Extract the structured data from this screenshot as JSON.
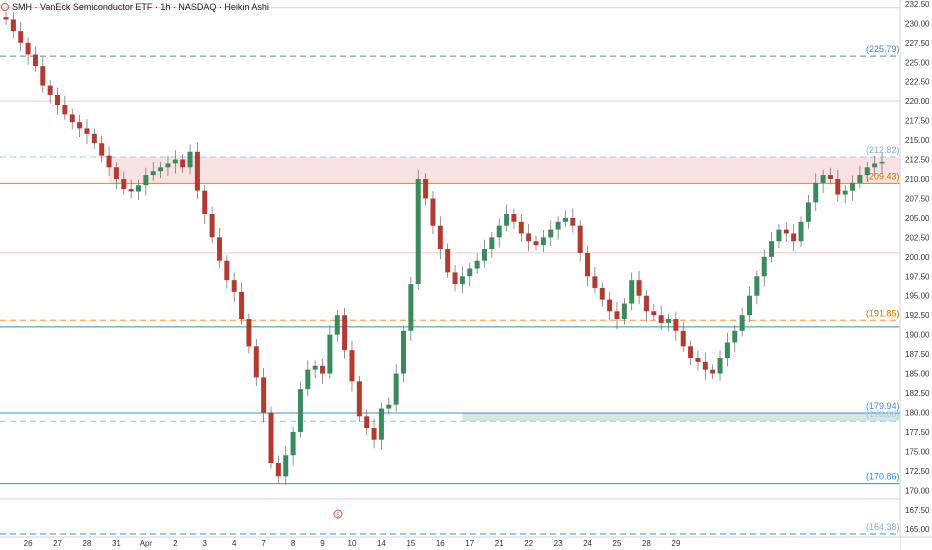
{
  "header": {
    "title": "SMH · VanEck Semiconductor ETF · 1h · NASDAQ · Heikin Ashi"
  },
  "marker": {
    "label": "5"
  },
  "chart_data": {
    "type": "candlestick",
    "symbol": "SMH",
    "interval": "1h",
    "style": "Heikin Ashi",
    "ylim": [
      164,
      233
    ],
    "y_ticks": [
      "232.50",
      "230.00",
      "227.50",
      "225.00",
      "222.50",
      "220.00",
      "217.50",
      "215.00",
      "212.50",
      "210.00",
      "207.50",
      "205.00",
      "202.50",
      "200.00",
      "197.50",
      "195.00",
      "192.50",
      "190.00",
      "187.50",
      "185.00",
      "182.50",
      "180.00",
      "177.50",
      "175.00",
      "172.50",
      "170.00",
      "167.50",
      "165.00"
    ],
    "x_ticks": [
      {
        "label": "26",
        "i": 3
      },
      {
        "label": "27",
        "i": 7
      },
      {
        "label": "28",
        "i": 11
      },
      {
        "label": "31",
        "i": 15
      },
      {
        "label": "Apr",
        "i": 19
      },
      {
        "label": "2",
        "i": 23
      },
      {
        "label": "3",
        "i": 27
      },
      {
        "label": "4",
        "i": 31
      },
      {
        "label": "7",
        "i": 35
      },
      {
        "label": "8",
        "i": 39
      },
      {
        "label": "9",
        "i": 43
      },
      {
        "label": "10",
        "i": 47
      },
      {
        "label": "14",
        "i": 51
      },
      {
        "label": "15",
        "i": 55
      },
      {
        "label": "16",
        "i": 59
      },
      {
        "label": "17",
        "i": 63
      },
      {
        "label": "21",
        "i": 67
      },
      {
        "label": "22",
        "i": 71
      },
      {
        "label": "23",
        "i": 75
      },
      {
        "label": "24",
        "i": 79
      },
      {
        "label": "25",
        "i": 83
      },
      {
        "label": "28",
        "i": 87
      },
      {
        "label": "29",
        "i": 91
      }
    ],
    "levels": [
      {
        "label": "225.79",
        "value": 225.79,
        "color": "#3d8fd6",
        "style": "dashed",
        "label_color": "#3d8fd6"
      },
      {
        "label": "212.82",
        "value": 212.82,
        "color": "#9fc8ef",
        "style": "dashed",
        "label_color": "#7fb6e8"
      },
      {
        "label": "209.43",
        "value": 209.43,
        "color": "#e08a00",
        "style": "solid",
        "label_color": "#c77700"
      },
      {
        "label": "191.85",
        "value": 191.85,
        "color": "#e0a030",
        "style": "dashed",
        "label_color": "#c77700"
      },
      {
        "label": "179.94",
        "value": 179.94,
        "color": "#3d8fd6",
        "style": "solid",
        "label_color": "#3d8fd6"
      },
      {
        "label": "178.88",
        "value": 178.88,
        "color": "#9fc8ef",
        "style": "dashed",
        "label_color": "#9fc8ef"
      },
      {
        "label": "170.86",
        "value": 170.86,
        "color": "#3d8fd6",
        "style": "solid",
        "label_color": "#3d8fd6"
      },
      {
        "label": "164.38",
        "value": 164.38,
        "color": "#3d8fd6",
        "style": "dashed",
        "label_color": "#7fb6e8"
      }
    ],
    "extra_lines": [
      {
        "value": 232.0,
        "color": "#f4c7c7"
      },
      {
        "value": 220.0,
        "color": "#f4c7c7"
      },
      {
        "value": 200.5,
        "color": "#f4c7c7"
      },
      {
        "value": 191.0,
        "color": "#2e9c8f"
      },
      {
        "value": 168.9,
        "color": "#f4c7c7"
      }
    ],
    "zones": [
      {
        "from_i": 14,
        "y1": 209.43,
        "y2": 212.82,
        "color": "rgba(240,150,150,0.28)"
      },
      {
        "from_i": 62,
        "y1": 178.88,
        "y2": 179.94,
        "color": "rgba(150,200,170,0.40)"
      }
    ],
    "closes": [
      230.5,
      229,
      227.5,
      226,
      224.5,
      222,
      220.8,
      219.5,
      218.3,
      217.3,
      216.5,
      215.8,
      214.6,
      213,
      211.5,
      210,
      208.7,
      208.4,
      209.2,
      210.5,
      211,
      211.5,
      212,
      212.5,
      211.5,
      213.5,
      208.5,
      205.5,
      202.5,
      199.5,
      197,
      195.5,
      192,
      188.5,
      184.5,
      180,
      173.5,
      171.8,
      174.5,
      177.5,
      183,
      185.5,
      186,
      185,
      190,
      192.5,
      188,
      184,
      179.5,
      178,
      176.5,
      180.5,
      181,
      185,
      190.5,
      196.5,
      210,
      207.5,
      204,
      201,
      198,
      196.5,
      197.5,
      198.5,
      199.5,
      201,
      202.5,
      204,
      205.5,
      204.5,
      203,
      202,
      201.5,
      202.5,
      203.5,
      204.5,
      205,
      204,
      200.5,
      197.5,
      196,
      194.5,
      193,
      192,
      194,
      197,
      195,
      193,
      192.5,
      191.5,
      192,
      190.5,
      188.5,
      187,
      186.5,
      185.5,
      185,
      187,
      189,
      190.5,
      192.5,
      195,
      197.5,
      200,
      202,
      203.5,
      203,
      202,
      204.5,
      207,
      209.5,
      210.5,
      210,
      208,
      208.5,
      209.5,
      210.5,
      211.5,
      212,
      212.2
    ]
  }
}
